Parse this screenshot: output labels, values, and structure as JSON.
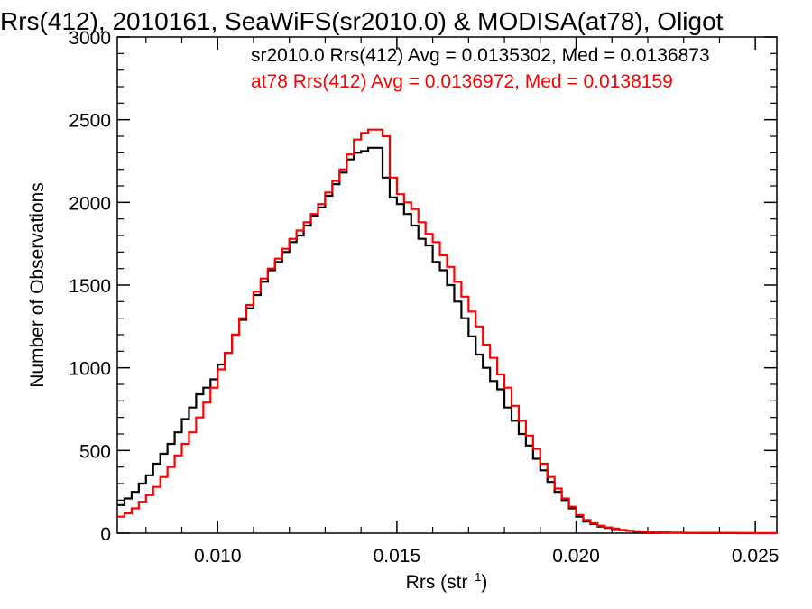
{
  "chart_data": {
    "type": "line",
    "title": "Rrs(412), 2010161, SeaWiFS(sr2010.0) & MODISA(at78), Oligot",
    "xlabel": "Rrs (str",
    "xlabel_sup": "−1",
    "xlabel_tail": ")",
    "ylabel": "Number of Observations",
    "xlim": [
      0.0072,
      0.0256
    ],
    "ylim": [
      0,
      3000
    ],
    "xticks": [
      0.01,
      0.015,
      0.02,
      0.025
    ],
    "xtick_labels": [
      "0.010",
      "0.015",
      "0.020",
      "0.025"
    ],
    "yticks": [
      0,
      500,
      1000,
      1500,
      2000,
      2500,
      3000
    ],
    "ytick_labels": [
      "0",
      "500",
      "1000",
      "1500",
      "2000",
      "2500",
      "3000"
    ],
    "legend_position": "top-right",
    "grid": false,
    "series": [
      {
        "name": "sr2010.0 Rrs(412) Avg = 0.0135302, Med = 0.0136873",
        "color": "#000000",
        "x": [
          0.0072,
          0.0074,
          0.0076,
          0.0078,
          0.008,
          0.0082,
          0.0084,
          0.0086,
          0.0088,
          0.009,
          0.0092,
          0.0094,
          0.0096,
          0.0098,
          0.01,
          0.0102,
          0.0104,
          0.0106,
          0.0108,
          0.011,
          0.0112,
          0.0114,
          0.0116,
          0.0118,
          0.012,
          0.0122,
          0.0124,
          0.0126,
          0.0128,
          0.013,
          0.0132,
          0.0134,
          0.0136,
          0.0138,
          0.014,
          0.0142,
          0.0144,
          0.0146,
          0.0148,
          0.015,
          0.0152,
          0.0154,
          0.0156,
          0.0158,
          0.016,
          0.0162,
          0.0164,
          0.0166,
          0.0168,
          0.017,
          0.0172,
          0.0174,
          0.0176,
          0.0178,
          0.018,
          0.0182,
          0.0184,
          0.0186,
          0.0188,
          0.019,
          0.0192,
          0.0194,
          0.0196,
          0.0198,
          0.02,
          0.0202,
          0.0204,
          0.0206,
          0.0208,
          0.021,
          0.0212,
          0.0214,
          0.0216,
          0.0218,
          0.022,
          0.0222,
          0.0224,
          0.0226,
          0.023,
          0.0235,
          0.024,
          0.0245,
          0.025,
          0.0256
        ],
        "y": [
          170,
          210,
          250,
          300,
          350,
          420,
          480,
          540,
          610,
          690,
          760,
          840,
          880,
          930,
          1020,
          1090,
          1200,
          1290,
          1360,
          1440,
          1520,
          1590,
          1640,
          1700,
          1760,
          1800,
          1860,
          1920,
          1970,
          2040,
          2110,
          2180,
          2260,
          2300,
          2310,
          2330,
          2330,
          2150,
          2030,
          1990,
          1930,
          1860,
          1780,
          1740,
          1640,
          1590,
          1500,
          1400,
          1300,
          1190,
          1080,
          1000,
          920,
          870,
          760,
          680,
          600,
          530,
          450,
          380,
          310,
          250,
          200,
          150,
          100,
          70,
          55,
          40,
          32,
          25,
          18,
          14,
          10,
          8,
          6,
          5,
          4,
          3,
          2,
          1,
          1,
          0,
          0,
          0
        ]
      },
      {
        "name": "at78 Rrs(412) Avg = 0.0136972, Med = 0.0138159",
        "color": "#ff0000",
        "x": [
          0.0072,
          0.0074,
          0.0076,
          0.0078,
          0.008,
          0.0082,
          0.0084,
          0.0086,
          0.0088,
          0.009,
          0.0092,
          0.0094,
          0.0096,
          0.0098,
          0.01,
          0.0102,
          0.0104,
          0.0106,
          0.0108,
          0.011,
          0.0112,
          0.0114,
          0.0116,
          0.0118,
          0.012,
          0.0122,
          0.0124,
          0.0126,
          0.0128,
          0.013,
          0.0132,
          0.0134,
          0.0136,
          0.0138,
          0.014,
          0.0142,
          0.0144,
          0.0146,
          0.0148,
          0.015,
          0.0152,
          0.0154,
          0.0156,
          0.0158,
          0.016,
          0.0162,
          0.0164,
          0.0166,
          0.0168,
          0.017,
          0.0172,
          0.0174,
          0.0176,
          0.0178,
          0.018,
          0.0182,
          0.0184,
          0.0186,
          0.0188,
          0.019,
          0.0192,
          0.0194,
          0.0196,
          0.0198,
          0.02,
          0.0202,
          0.0204,
          0.0206,
          0.0208,
          0.021,
          0.0212,
          0.0214,
          0.0216,
          0.0218,
          0.022,
          0.0222,
          0.0224,
          0.0226,
          0.023,
          0.0235,
          0.024,
          0.0245,
          0.025,
          0.0256
        ],
        "y": [
          100,
          120,
          150,
          190,
          230,
          280,
          340,
          400,
          470,
          540,
          610,
          700,
          790,
          880,
          990,
          1090,
          1200,
          1300,
          1380,
          1460,
          1540,
          1600,
          1660,
          1720,
          1780,
          1830,
          1880,
          1930,
          1990,
          2060,
          2130,
          2200,
          2290,
          2380,
          2420,
          2440,
          2440,
          2400,
          2150,
          2050,
          2000,
          1960,
          1880,
          1810,
          1760,
          1680,
          1610,
          1520,
          1430,
          1340,
          1250,
          1140,
          1060,
          960,
          880,
          770,
          680,
          590,
          510,
          420,
          340,
          270,
          210,
          160,
          110,
          80,
          60,
          45,
          35,
          28,
          20,
          15,
          12,
          9,
          7,
          5,
          4,
          3,
          2,
          2,
          1,
          1,
          0,
          0
        ]
      }
    ]
  }
}
